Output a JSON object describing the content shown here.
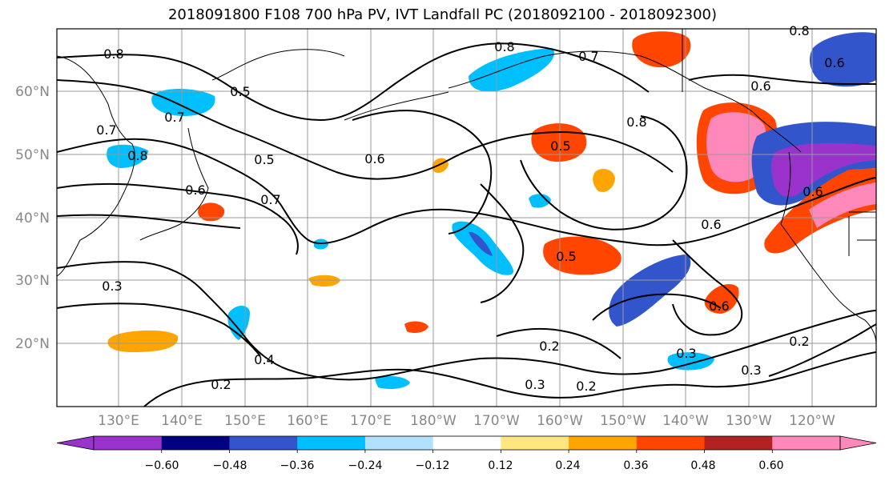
{
  "title": "2018091800 F108 700 hPa PV, IVT Landfall PC (2018092100 - 2018092300)",
  "lat_labels": [
    "60°N",
    "50°N",
    "40°N",
    "30°N",
    "20°N"
  ],
  "lon_labels": [
    "130°E",
    "140°E",
    "150°E",
    "160°E",
    "170°E",
    "180°W",
    "170°W",
    "160°W",
    "150°W",
    "140°W",
    "130°W",
    "120°W"
  ],
  "colorbar": {
    "colors": [
      "#9933cc",
      "#000080",
      "#3355cc",
      "#00bfff",
      "#b0e2ff",
      "#ffffff",
      "#ffe680",
      "#ffa500",
      "#ff4500",
      "#b22222",
      "#ff88bb"
    ],
    "tick_labels": [
      "−0.60",
      "−0.48",
      "−0.36",
      "−0.24",
      "−0.12",
      "0.12",
      "0.24",
      "0.36",
      "0.48",
      "0.60"
    ]
  },
  "contour_labels": [
    "0.8",
    "0.8",
    "0.7",
    "0.8",
    "0.7",
    "0.8",
    "0.7",
    "0.5",
    "0.6",
    "0.6",
    "0.8",
    "0.6",
    "0.5",
    "0.6",
    "0.7",
    "0.5",
    "0.6",
    "0.5",
    "0.6",
    "0.3",
    "0.4",
    "0.2",
    "0.2",
    "0.3",
    "0.2",
    "0.3",
    "0.2",
    "0.3",
    "0.6"
  ]
}
